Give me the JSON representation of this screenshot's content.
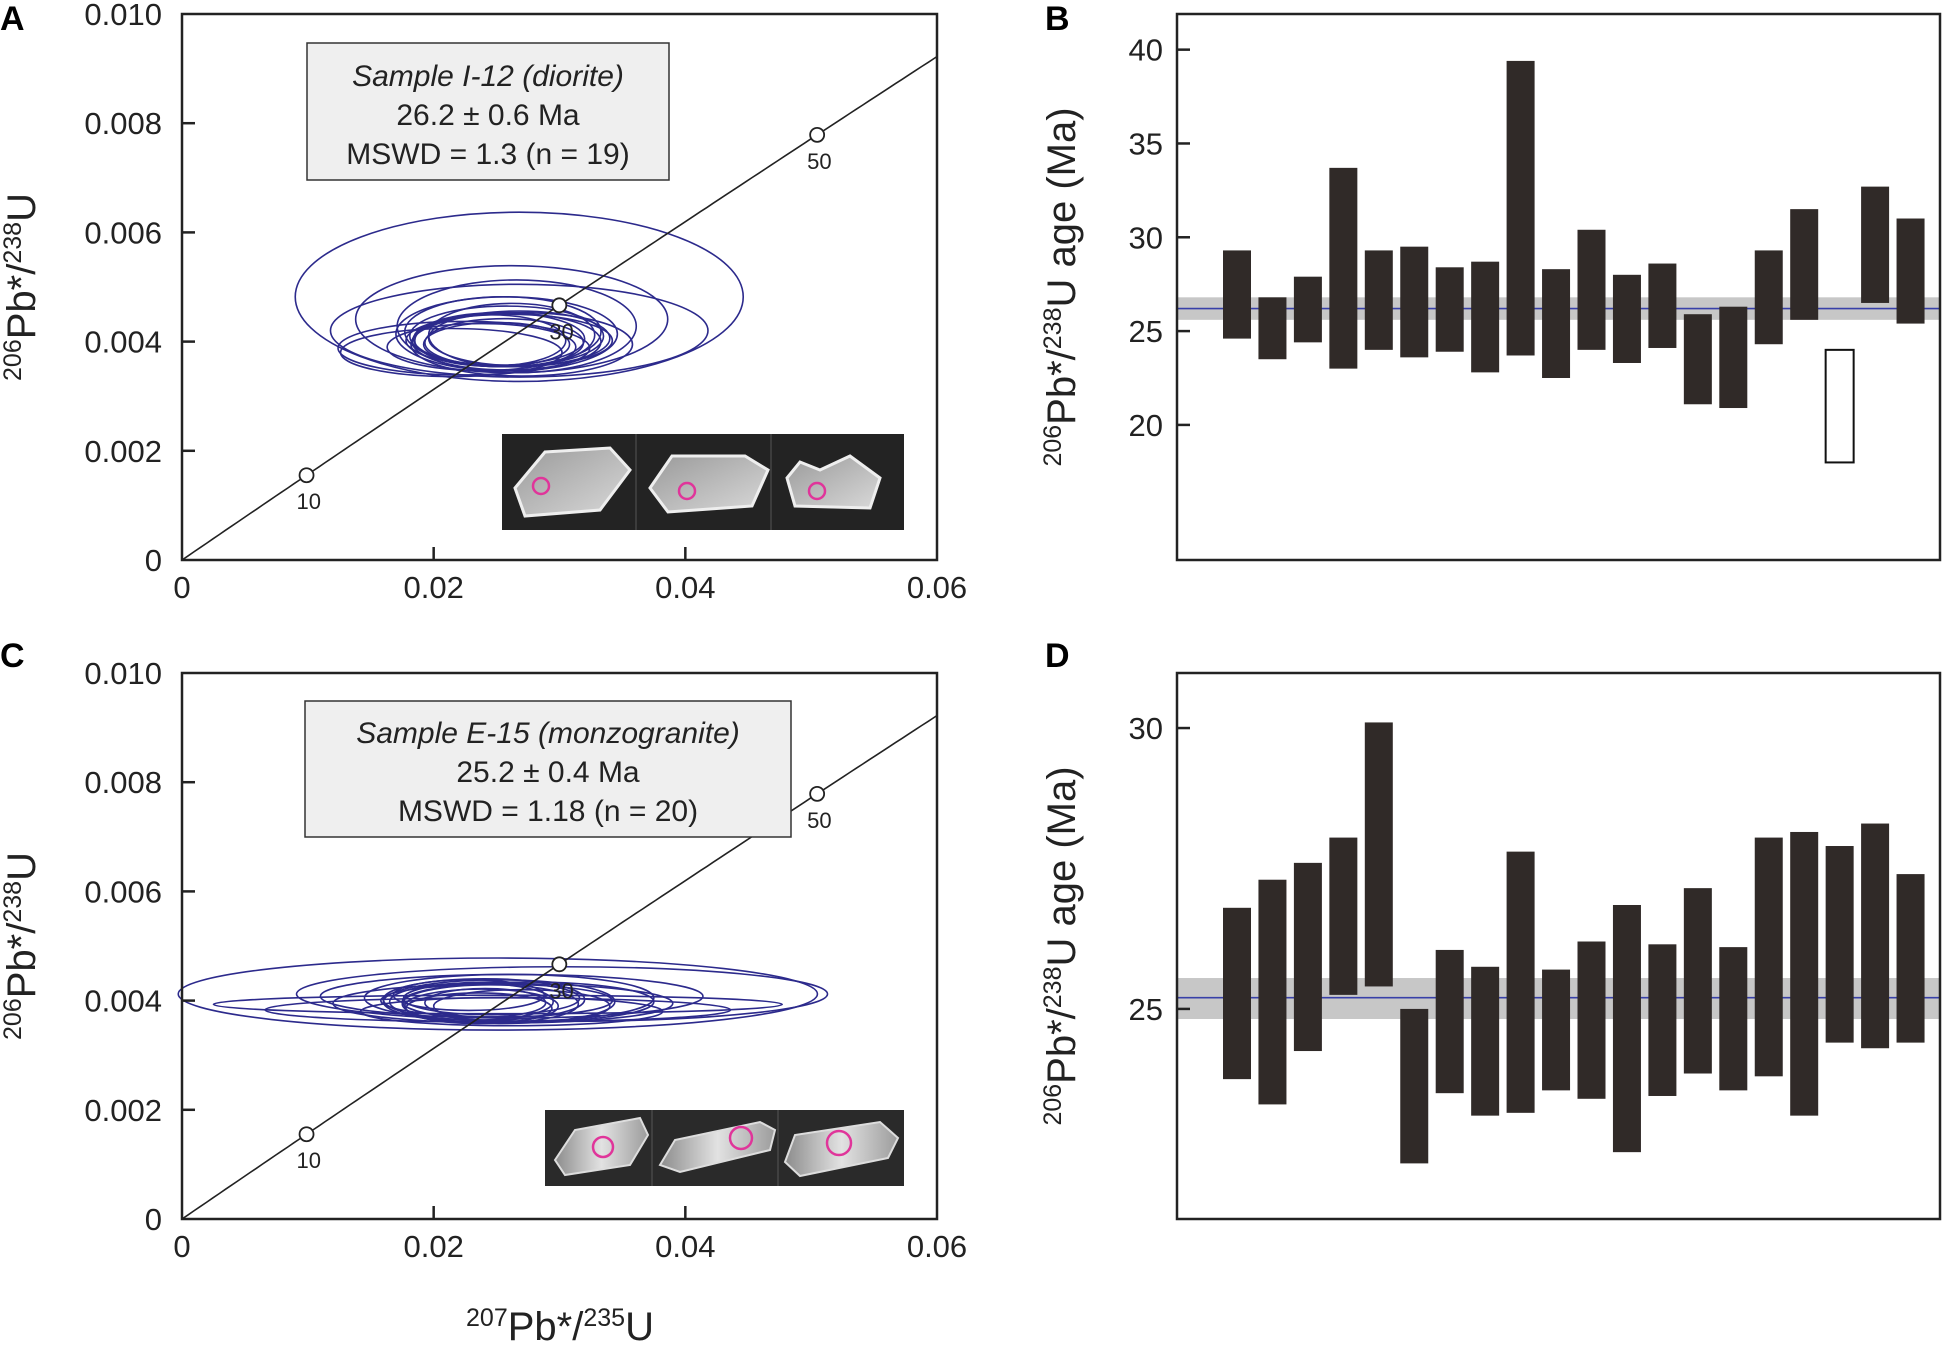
{
  "panel_labels": [
    "A",
    "B",
    "C",
    "D"
  ],
  "concordia_points": [
    10,
    30,
    50
  ],
  "colors": {
    "ellipse": "#2c2a8c",
    "bar": "#302a28",
    "mean_band": "#c7c7c7",
    "mean_line": "#3840a8",
    "inset_circle": "#e0359a",
    "axis": "#222222",
    "textbox_bg": "#efefef"
  },
  "chart_data": [
    {
      "panel": "A",
      "type": "scatter",
      "subtype": "concordia-ellipses",
      "xlabel": "207Pb*/235U",
      "ylabel": "206Pb*/238U",
      "xlim": [
        0,
        0.06
      ],
      "ylim": [
        0,
        0.01
      ],
      "xticks": [
        "0",
        "0.02",
        "0.04",
        "0.06"
      ],
      "yticks": [
        "0",
        "0.002",
        "0.004",
        "0.006",
        "0.008",
        "0.010"
      ],
      "sample": "Sample I-12 (diorite)",
      "age": "26.2 ± 0.6 Ma",
      "mswd": "MSWD = 1.3 (n = 19)",
      "ellipses": [
        {
          "cx": 0.0268,
          "cy": 0.00482,
          "rx": 0.0178,
          "ry": 0.00155
        },
        {
          "cx": 0.0262,
          "cy": 0.00441,
          "rx": 0.0124,
          "ry": 0.00098
        },
        {
          "cx": 0.0268,
          "cy": 0.0042,
          "rx": 0.015,
          "ry": 0.00085
        },
        {
          "cx": 0.0266,
          "cy": 0.00428,
          "rx": 0.0095,
          "ry": 0.00085
        },
        {
          "cx": 0.0258,
          "cy": 0.00414,
          "rx": 0.0088,
          "ry": 0.00068
        },
        {
          "cx": 0.0258,
          "cy": 0.0041,
          "rx": 0.0077,
          "ry": 0.00055
        },
        {
          "cx": 0.0255,
          "cy": 0.00418,
          "rx": 0.0078,
          "ry": 0.00064
        },
        {
          "cx": 0.0252,
          "cy": 0.00405,
          "rx": 0.0068,
          "ry": 0.00048
        },
        {
          "cx": 0.0258,
          "cy": 0.004,
          "rx": 0.0075,
          "ry": 0.00052
        },
        {
          "cx": 0.0256,
          "cy": 0.00398,
          "rx": 0.0063,
          "ry": 0.00044
        },
        {
          "cx": 0.0262,
          "cy": 0.00412,
          "rx": 0.0066,
          "ry": 0.00058
        },
        {
          "cx": 0.025,
          "cy": 0.00395,
          "rx": 0.0058,
          "ry": 0.0004
        },
        {
          "cx": 0.026,
          "cy": 0.00402,
          "rx": 0.0082,
          "ry": 0.00048
        },
        {
          "cx": 0.0238,
          "cy": 0.0039,
          "rx": 0.0075,
          "ry": 0.00043
        },
        {
          "cx": 0.0224,
          "cy": 0.00388,
          "rx": 0.01,
          "ry": 0.00049
        },
        {
          "cx": 0.0214,
          "cy": 0.0038,
          "rx": 0.0088,
          "ry": 0.00044
        },
        {
          "cx": 0.0268,
          "cy": 0.00406,
          "rx": 0.0072,
          "ry": 0.0005
        },
        {
          "cx": 0.027,
          "cy": 0.00395,
          "rx": 0.0088,
          "ry": 0.00058
        },
        {
          "cx": 0.0245,
          "cy": 0.00402,
          "rx": 0.006,
          "ry": 0.00047
        }
      ]
    },
    {
      "panel": "B",
      "type": "bar",
      "subtype": "weighted-mean-age",
      "ylabel": "206Pb*/238U age (Ma)",
      "ylim": [
        12.8,
        41.9
      ],
      "yticks": [
        "20",
        "25",
        "30",
        "35",
        "40"
      ],
      "mean": 26.2,
      "mean_band": [
        25.6,
        26.8
      ],
      "bars": [
        {
          "low": 24.6,
          "high": 29.3
        },
        {
          "low": 23.5,
          "high": 26.8
        },
        {
          "low": 24.4,
          "high": 27.9
        },
        {
          "low": 23.0,
          "high": 33.7
        },
        {
          "low": 24.0,
          "high": 29.3
        },
        {
          "low": 23.6,
          "high": 29.5
        },
        {
          "low": 23.9,
          "high": 28.4
        },
        {
          "low": 22.8,
          "high": 28.7
        },
        {
          "low": 23.7,
          "high": 39.4
        },
        {
          "low": 22.5,
          "high": 28.3
        },
        {
          "low": 24.0,
          "high": 30.4
        },
        {
          "low": 23.3,
          "high": 28.0
        },
        {
          "low": 24.1,
          "high": 28.6
        },
        {
          "low": 21.1,
          "high": 25.9
        },
        {
          "low": 20.9,
          "high": 26.3
        },
        {
          "low": 24.3,
          "high": 29.3
        },
        {
          "low": 25.6,
          "high": 31.5
        },
        {
          "low": 18.0,
          "high": 24.0,
          "rejected": true
        },
        {
          "low": 26.5,
          "high": 32.7
        },
        {
          "low": 25.4,
          "high": 31.0
        }
      ]
    },
    {
      "panel": "C",
      "type": "scatter",
      "subtype": "concordia-ellipses",
      "xlabel": "207Pb*/235U",
      "ylabel": "206Pb*/238U",
      "xlim": [
        0,
        0.06
      ],
      "ylim": [
        0,
        0.01
      ],
      "xticks": [
        "0",
        "0.02",
        "0.04",
        "0.06"
      ],
      "yticks": [
        "0",
        "0.002",
        "0.004",
        "0.006",
        "0.008",
        "0.010"
      ],
      "sample": "Sample E-15 (monzogranite)",
      "age": "25.2 ± 0.4 Ma",
      "mswd": "MSWD = 1.18 (n = 20)",
      "ellipses": [
        {
          "cx": 0.0251,
          "cy": 0.00412,
          "rx": 0.0254,
          "ry": 0.00066
        },
        {
          "cx": 0.0302,
          "cy": 0.00412,
          "rx": 0.0211,
          "ry": 0.0005
        },
        {
          "cx": 0.0262,
          "cy": 0.00408,
          "rx": 0.0152,
          "ry": 0.0004
        },
        {
          "cx": 0.0251,
          "cy": 0.00393,
          "rx": 0.0226,
          "ry": 0.00017
        },
        {
          "cx": 0.0251,
          "cy": 0.00383,
          "rx": 0.0185,
          "ry": 0.00022
        },
        {
          "cx": 0.026,
          "cy": 0.00405,
          "rx": 0.0115,
          "ry": 0.00043
        },
        {
          "cx": 0.0252,
          "cy": 0.00398,
          "rx": 0.0092,
          "ry": 0.0004
        },
        {
          "cx": 0.024,
          "cy": 0.00402,
          "rx": 0.008,
          "ry": 0.00038
        },
        {
          "cx": 0.0245,
          "cy": 0.00394,
          "rx": 0.007,
          "ry": 0.00035
        },
        {
          "cx": 0.0238,
          "cy": 0.0039,
          "rx": 0.0061,
          "ry": 0.00031
        },
        {
          "cx": 0.025,
          "cy": 0.004,
          "rx": 0.0092,
          "ry": 0.0003
        },
        {
          "cx": 0.0236,
          "cy": 0.00386,
          "rx": 0.0058,
          "ry": 0.00028
        },
        {
          "cx": 0.0275,
          "cy": 0.00398,
          "rx": 0.01,
          "ry": 0.00036
        },
        {
          "cx": 0.0262,
          "cy": 0.0038,
          "rx": 0.012,
          "ry": 0.00026
        },
        {
          "cx": 0.0228,
          "cy": 0.0041,
          "rx": 0.006,
          "ry": 0.00028
        },
        {
          "cx": 0.0241,
          "cy": 0.00396,
          "rx": 0.0048,
          "ry": 0.00026
        },
        {
          "cx": 0.0255,
          "cy": 0.00395,
          "rx": 0.0135,
          "ry": 0.00036
        },
        {
          "cx": 0.0246,
          "cy": 0.00404,
          "rx": 0.007,
          "ry": 0.0003
        },
        {
          "cx": 0.027,
          "cy": 0.0039,
          "rx": 0.007,
          "ry": 0.0003
        },
        {
          "cx": 0.023,
          "cy": 0.00398,
          "rx": 0.0065,
          "ry": 0.00034
        }
      ]
    },
    {
      "panel": "D",
      "type": "bar",
      "subtype": "weighted-mean-age",
      "ylabel": "206Pb*/238U age (Ma)",
      "ylim": [
        21.26,
        30.98
      ],
      "yticks": [
        "25",
        "30"
      ],
      "mean": 25.2,
      "mean_band": [
        24.82,
        25.55
      ],
      "bars": [
        {
          "low": 23.75,
          "high": 26.8
        },
        {
          "low": 23.3,
          "high": 27.3
        },
        {
          "low": 24.25,
          "high": 27.6
        },
        {
          "low": 25.25,
          "high": 28.05
        },
        {
          "low": 25.4,
          "high": 30.1
        },
        {
          "low": 22.25,
          "high": 25.0
        },
        {
          "low": 23.5,
          "high": 26.05
        },
        {
          "low": 23.1,
          "high": 25.75
        },
        {
          "low": 23.15,
          "high": 27.8
        },
        {
          "low": 23.55,
          "high": 25.7
        },
        {
          "low": 23.4,
          "high": 26.2
        },
        {
          "low": 22.45,
          "high": 26.85
        },
        {
          "low": 23.45,
          "high": 26.15
        },
        {
          "low": 23.85,
          "high": 27.15
        },
        {
          "low": 23.55,
          "high": 26.1
        },
        {
          "low": 23.8,
          "high": 28.05
        },
        {
          "low": 23.1,
          "high": 28.15
        },
        {
          "low": 24.4,
          "high": 27.9
        },
        {
          "low": 24.3,
          "high": 28.3
        },
        {
          "low": 24.4,
          "high": 27.4
        }
      ]
    }
  ]
}
